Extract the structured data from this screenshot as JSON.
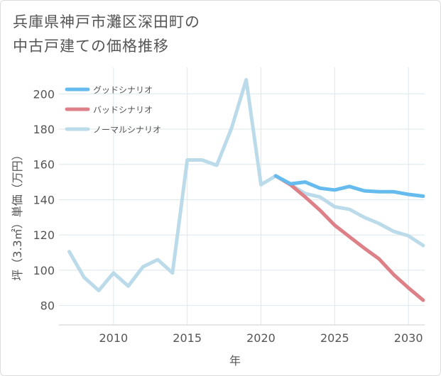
{
  "title_line1": "兵庫県神戸市灘区深田町の",
  "title_line2": "中古戸建ての価格推移",
  "chart_data": {
    "type": "line",
    "xlabel": "年",
    "ylabel": "坪（3.3㎡）単価（万円）",
    "xlim": [
      2006.3,
      2031.1
    ],
    "ylim": [
      69,
      215
    ],
    "xticks": [
      2010,
      2015,
      2020,
      2025,
      2030
    ],
    "yticks": [
      80,
      100,
      120,
      140,
      160,
      180,
      200
    ],
    "grid": true,
    "legend_position": "top-left",
    "series": [
      {
        "name": "グッドシナリオ",
        "color": "#66bbee",
        "x": [
          2021,
          2022,
          2023,
          2024,
          2025,
          2026,
          2027,
          2028,
          2029,
          2030,
          2031
        ],
        "values": [
          153.5,
          149,
          150,
          146.5,
          145.5,
          147.5,
          145,
          144.5,
          144.5,
          143,
          142
        ]
      },
      {
        "name": "バッドシナリオ",
        "color": "#dd8088",
        "x": [
          2021,
          2022,
          2023,
          2024,
          2025,
          2026,
          2027,
          2028,
          2029,
          2030,
          2031
        ],
        "values": [
          153.5,
          148.5,
          141.5,
          134,
          125.5,
          119,
          112.5,
          106.5,
          97.5,
          90,
          83
        ]
      },
      {
        "name": "ノーマルシナリオ",
        "color": "#bbdbea",
        "x": [
          2007,
          2008,
          2009,
          2010,
          2011,
          2012,
          2013,
          2014,
          2015,
          2016,
          2017,
          2018,
          2019,
          2020,
          2021,
          2022,
          2023,
          2024,
          2025,
          2026,
          2027,
          2028,
          2029,
          2030,
          2031
        ],
        "values": [
          110.5,
          96,
          88.5,
          98.5,
          91,
          102,
          106,
          98.5,
          162.5,
          162.5,
          159.5,
          180.5,
          208,
          148.5,
          153.5,
          148.5,
          143.5,
          141.5,
          136,
          134.5,
          130,
          126.5,
          122,
          119.5,
          114
        ]
      }
    ]
  }
}
